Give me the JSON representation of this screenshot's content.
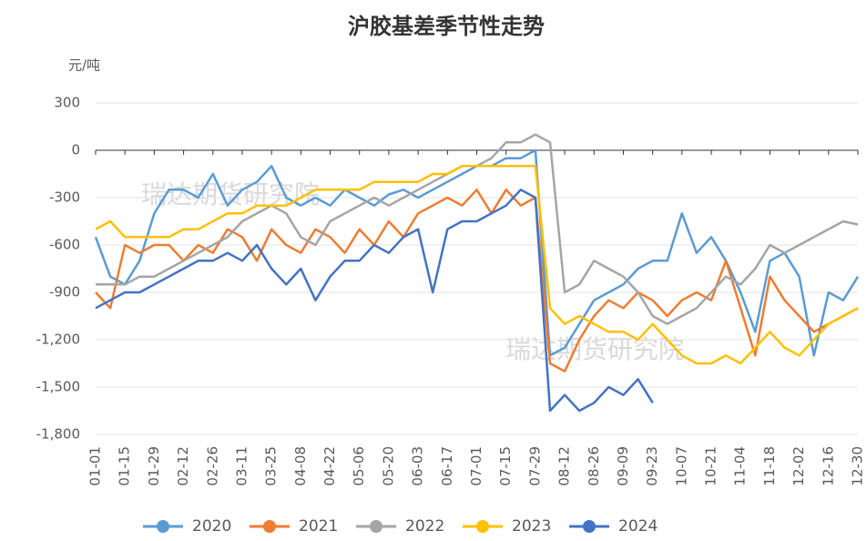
{
  "chart_data": {
    "type": "line",
    "title": "沪胶基差季节性走势",
    "y_label": "元/吨",
    "watermark": "瑞达期货研究院",
    "categories": [
      "01-01",
      null,
      "01-15",
      null,
      "01-29",
      null,
      "02-12",
      null,
      "02-26",
      null,
      "03-11",
      null,
      "03-25",
      null,
      "04-08",
      null,
      "04-22",
      null,
      "05-06",
      null,
      "05-20",
      null,
      "06-03",
      null,
      "06-17",
      null,
      "07-01",
      null,
      "07-15",
      null,
      "07-29",
      null,
      "08-12",
      null,
      "08-26",
      null,
      "09-09",
      null,
      "09-23",
      null,
      "10-07",
      null,
      "10-21",
      null,
      "11-04",
      null,
      "11-18",
      null,
      "12-02",
      null,
      "12-16",
      null,
      "12-30"
    ],
    "series": [
      {
        "name": "2020",
        "color": "#5b9bd5",
        "values": [
          -550,
          -800,
          -850,
          -700,
          -400,
          -250,
          -250,
          -300,
          -150,
          -350,
          -250,
          -200,
          -100,
          -300,
          -350,
          -300,
          -350,
          -250,
          -300,
          -350,
          -280,
          -250,
          -300,
          -250,
          -200,
          -150,
          -100,
          -100,
          -50,
          -50,
          0,
          -1300,
          -1250,
          -1100,
          -950,
          -900,
          -850,
          -750,
          -700,
          -700,
          -400,
          -650,
          -550,
          -700,
          -900,
          -1150,
          -700,
          -650,
          -800,
          -1300,
          -900,
          -950,
          -800
        ]
      },
      {
        "name": "2021",
        "color": "#ed7d31",
        "values": [
          -900,
          -1000,
          -600,
          -650,
          -600,
          -600,
          -700,
          -600,
          -650,
          -500,
          -550,
          -700,
          -500,
          -600,
          -650,
          -500,
          -550,
          -650,
          -500,
          -600,
          -450,
          -550,
          -400,
          -350,
          -300,
          -350,
          -250,
          -400,
          -250,
          -350,
          -300,
          -1350,
          -1400,
          -1200,
          -1050,
          -950,
          -1000,
          -900,
          -950,
          -1050,
          -950,
          -900,
          -950,
          -700,
          -1000,
          -1300,
          -800,
          -950,
          -1050,
          -1150,
          -1100,
          -1050,
          -1000
        ]
      },
      {
        "name": "2022",
        "color": "#a5a5a5",
        "values": [
          -850,
          -850,
          -850,
          -800,
          -800,
          -750,
          -700,
          -650,
          -600,
          -550,
          -450,
          -400,
          -350,
          -400,
          -550,
          -600,
          -450,
          -400,
          -350,
          -300,
          -350,
          -300,
          -250,
          -200,
          -150,
          -100,
          -100,
          -50,
          50,
          50,
          100,
          50,
          -900,
          -850,
          -700,
          -750,
          -800,
          -900,
          -1050,
          -1100,
          -1050,
          -1000,
          -900,
          -800,
          -850,
          -750,
          -600,
          -650,
          -600,
          -550,
          -500,
          -450,
          -470
        ]
      },
      {
        "name": "2023",
        "color": "#ffc000",
        "values": [
          -500,
          -450,
          -550,
          -550,
          -550,
          -550,
          -500,
          -500,
          -450,
          -400,
          -400,
          -350,
          -350,
          -350,
          -300,
          -250,
          -250,
          -250,
          -250,
          -200,
          -200,
          -200,
          -200,
          -150,
          -150,
          -100,
          -100,
          -100,
          -100,
          -100,
          -100,
          -1000,
          -1100,
          -1050,
          -1100,
          -1150,
          -1150,
          -1200,
          -1100,
          -1200,
          -1300,
          -1350,
          -1350,
          -1300,
          -1350,
          -1250,
          -1150,
          -1250,
          -1300,
          -1200,
          -1100,
          -1050,
          -1000
        ]
      },
      {
        "name": "2024",
        "color": "#4472c4",
        "values": [
          -1000,
          -950,
          -900,
          -900,
          -850,
          -800,
          -750,
          -700,
          -700,
          -650,
          -700,
          -600,
          -750,
          -850,
          -750,
          -950,
          -800,
          -700,
          -700,
          -600,
          -650,
          -550,
          -500,
          -900,
          -500,
          -450,
          -450,
          -400,
          -350,
          -250,
          -300,
          -1650,
          -1550,
          -1650,
          -1600,
          -1500,
          -1550,
          -1450,
          -1600,
          null,
          null,
          null,
          null,
          null,
          null,
          null,
          null,
          null,
          null,
          null,
          null,
          null,
          null
        ]
      }
    ],
    "ylim": [
      -1800,
      300
    ],
    "yticks": [
      300,
      0,
      -300,
      -600,
      -900,
      {
        "value": -1200,
        "label": "-1,200"
      },
      {
        "value": -1500,
        "label": "-1,500"
      },
      {
        "value": -1800,
        "label": "-1,800"
      }
    ],
    "grid": true
  }
}
